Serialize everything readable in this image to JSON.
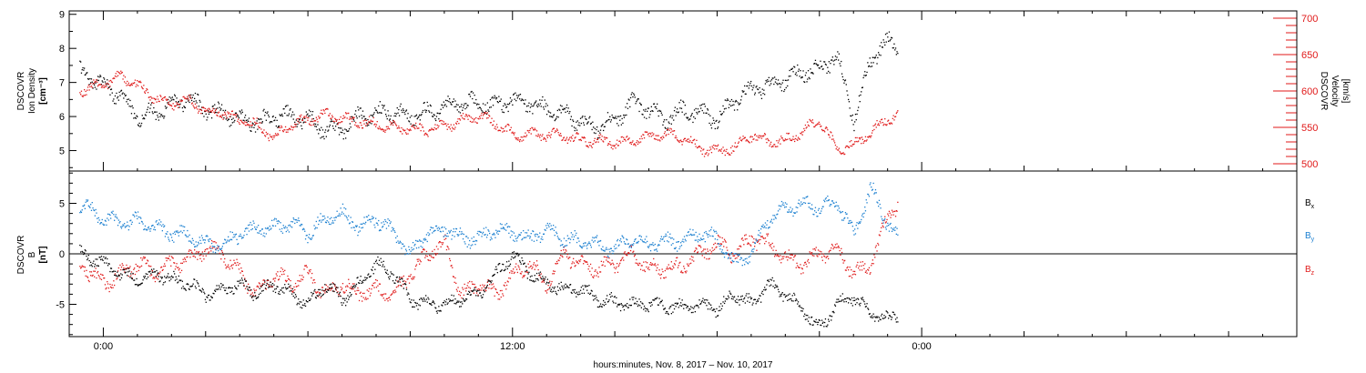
{
  "chart_data": [
    {
      "type": "scatter",
      "panel": "density-velocity",
      "ylabel_left": [
        "DSCOVR",
        "Ion Density",
        "[cm⁻³]"
      ],
      "ylabel_right": [
        "DSCOVR",
        "Velocity",
        "[km/s]"
      ],
      "ylim_left": [
        4.4,
        9.1
      ],
      "ylim_right": [
        490,
        710
      ],
      "yticks_left": [
        5,
        6,
        7,
        8,
        9
      ],
      "yticks_right": [
        500,
        550,
        600,
        650,
        700
      ],
      "colors": {
        "density": "#000000",
        "velocity": "#e01a1a"
      },
      "series": [
        {
          "name": "Ion Density",
          "axis": "left",
          "color": "#000000",
          "x": [
            -0.7,
            0,
            0.5,
            1,
            1.5,
            2,
            2.5,
            3,
            3.5,
            4,
            4.5,
            5,
            5.5,
            6,
            6.5,
            7,
            7.5,
            8,
            8.5,
            9,
            9.5,
            10,
            10.5,
            11,
            11.5,
            12,
            12.5,
            13,
            13.5,
            14,
            14.5,
            15,
            15.5,
            16,
            16.5,
            17,
            17.5,
            18,
            18.5,
            19,
            19.5,
            20,
            20.5,
            21,
            21.5,
            22,
            22.5,
            23,
            23.3
          ],
          "y": [
            7.3,
            6.9,
            6.6,
            6.0,
            6.1,
            6.4,
            6.5,
            6.2,
            6.1,
            5.9,
            5.8,
            6.0,
            6.0,
            5.9,
            5.6,
            5.6,
            6.0,
            6.1,
            6.1,
            6.0,
            6.1,
            6.3,
            6.4,
            6.4,
            6.3,
            6.5,
            6.4,
            6.2,
            6.1,
            5.8,
            5.7,
            5.9,
            6.4,
            6.2,
            5.9,
            6.2,
            6.1,
            5.9,
            6.5,
            6.8,
            6.9,
            7.1,
            7.3,
            7.4,
            7.8,
            5.9,
            7.7,
            8.2,
            8.0
          ]
        },
        {
          "name": "Velocity",
          "axis": "right",
          "color": "#e01a1a",
          "x": [
            -0.7,
            0,
            0.5,
            1,
            1.5,
            2,
            2.5,
            3,
            3.5,
            4,
            4.5,
            5,
            5.5,
            6,
            6.5,
            7,
            7.5,
            8,
            8.5,
            9,
            9.5,
            10,
            10.5,
            11,
            11.5,
            12,
            12.5,
            13,
            13.5,
            14,
            14.5,
            15,
            15.5,
            16,
            16.5,
            17,
            17.5,
            18,
            18.5,
            19,
            19.5,
            20,
            20.5,
            21,
            21.5,
            22,
            22.5,
            23,
            23.3
          ],
          "y": [
            600,
            610,
            620,
            608,
            590,
            582,
            588,
            572,
            570,
            560,
            553,
            535,
            555,
            560,
            568,
            562,
            558,
            554,
            550,
            548,
            546,
            552,
            559,
            565,
            556,
            540,
            540,
            540,
            538,
            532,
            531,
            530,
            532,
            538,
            540,
            536,
            520,
            518,
            522,
            540,
            530,
            532,
            545,
            560,
            520,
            526,
            543,
            563,
            565
          ]
        }
      ]
    },
    {
      "type": "scatter",
      "panel": "magnetic-field",
      "ylabel": [
        "DSCOVR",
        "B",
        "[nT]"
      ],
      "ylim": [
        -8.2,
        8.2
      ],
      "yticks": [
        -5,
        0,
        5
      ],
      "legend_position": "right",
      "colors": {
        "Bx": "#000000",
        "By": "#1a7fd0",
        "Bz": "#e01a1a"
      },
      "series": [
        {
          "name": "Bx",
          "color": "#000000",
          "x": [
            -0.7,
            0,
            0.5,
            1,
            1.5,
            2,
            2.5,
            3,
            3.5,
            4,
            4.5,
            5,
            5.5,
            6,
            6.5,
            7,
            7.5,
            8,
            8.5,
            9,
            9.5,
            10,
            10.5,
            11,
            11.5,
            12,
            12.5,
            13,
            13.5,
            14,
            14.5,
            15,
            15.5,
            16,
            16.5,
            17,
            17.5,
            18,
            18.5,
            19,
            19.5,
            20,
            20.5,
            21,
            21.5,
            22,
            22.5,
            23,
            23.3
          ],
          "y": [
            0,
            -1,
            -2,
            -2.5,
            -2,
            -2.5,
            -3,
            -4,
            -3.5,
            -3,
            -4,
            -3,
            -4,
            -5,
            -3,
            -4.5,
            -3,
            -1,
            -2,
            -4.5,
            -5,
            -5,
            -4.5,
            -4,
            -2,
            0,
            -2,
            -3,
            -3.5,
            -3.5,
            -4.5,
            -4.8,
            -5,
            -5,
            -5.2,
            -5.3,
            -5,
            -5.5,
            -4,
            -5,
            -3,
            -4,
            -5.5,
            -7.5,
            -5,
            -4.2,
            -6,
            -6.5,
            -6
          ]
        },
        {
          "name": "By",
          "color": "#1a7fd0",
          "x": [
            -0.7,
            0,
            0.5,
            1,
            1.5,
            2,
            2.5,
            3,
            3.5,
            4,
            4.5,
            5,
            5.5,
            6,
            6.5,
            7,
            7.5,
            8,
            8.5,
            9,
            9.5,
            10,
            10.5,
            11,
            11.5,
            12,
            12.5,
            13,
            13.5,
            14,
            14.5,
            15,
            15.5,
            16,
            16.5,
            17,
            17.5,
            18,
            18.5,
            19,
            19.5,
            20,
            20.5,
            21,
            21.5,
            22,
            22.5,
            23,
            23.3
          ],
          "y": [
            5,
            3.5,
            3,
            3.2,
            2.5,
            2,
            1.8,
            1,
            0.8,
            2,
            2.5,
            2.5,
            3,
            2,
            3.5,
            4,
            2.5,
            3.5,
            2,
            0,
            2,
            2.5,
            1.5,
            1.5,
            2.5,
            2,
            1.5,
            2.5,
            1.5,
            1.2,
            0.8,
            0.5,
            1.5,
            1,
            1.3,
            1.2,
            2,
            1.5,
            -1,
            0,
            3.5,
            4.5,
            5,
            4.5,
            5,
            2,
            6.5,
            3,
            1.5
          ]
        },
        {
          "name": "Bz",
          "color": "#e01a1a",
          "x": [
            -0.7,
            0,
            0.5,
            1,
            1.5,
            2,
            2.5,
            3,
            3.5,
            4,
            4.5,
            5,
            5.5,
            6,
            6.5,
            7,
            7.5,
            8,
            8.5,
            9,
            9.5,
            10,
            10.5,
            11,
            11.5,
            12,
            12.5,
            13,
            13.5,
            14,
            14.5,
            15,
            15.5,
            16,
            16.5,
            17,
            17.5,
            18,
            18.5,
            19,
            19.5,
            20,
            20.5,
            21,
            21.5,
            22,
            22.5,
            23,
            23.3
          ],
          "y": [
            -1,
            -3,
            -2,
            -1,
            -2,
            -1,
            -0.5,
            0.5,
            0,
            -2,
            -4,
            -2,
            -3,
            -2,
            -4,
            -3,
            -4,
            -3.5,
            -4,
            -2,
            0,
            1,
            -4,
            -3,
            -4,
            -2,
            -1,
            -3,
            0,
            -1,
            -1.5,
            -1,
            0,
            -1.5,
            -1.5,
            -1.2,
            0,
            1,
            0,
            1.5,
            1,
            -0.5,
            -1,
            0,
            0.5,
            -2,
            -1,
            4,
            5
          ]
        }
      ]
    }
  ],
  "x_axis": {
    "label": "hours:minutes, Nov.  8, 2017 – Nov. 10, 2017",
    "xlim": [
      -1,
      35
    ],
    "tick_labels": [
      {
        "x": 0,
        "label": "0:00"
      },
      {
        "x": 12,
        "label": "12:00"
      },
      {
        "x": 24,
        "label": "0:00"
      }
    ]
  }
}
